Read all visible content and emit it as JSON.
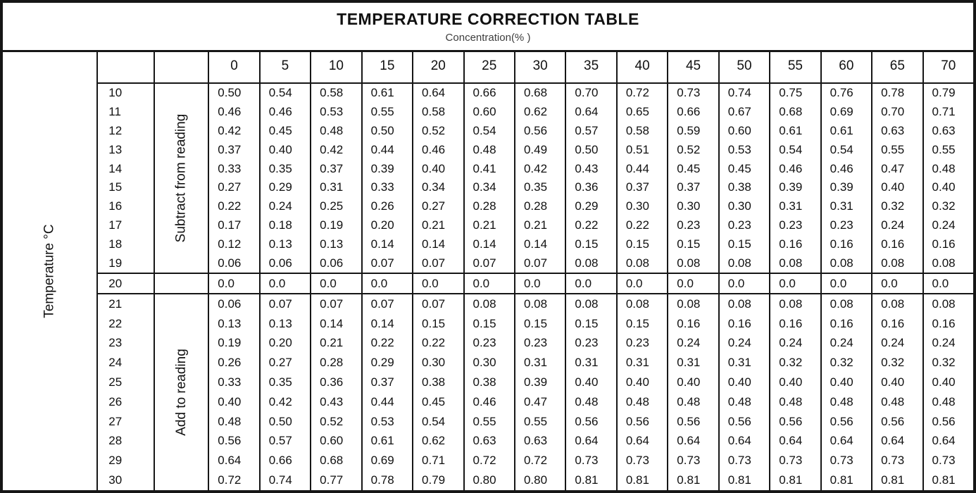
{
  "page": {
    "title": "TEMPERATURE CORRECTION TABLE",
    "subtitle": "Concentration(% )"
  },
  "colors": {
    "border": "#161616",
    "text": "#111111",
    "subtitle_text": "#3d3d3d",
    "background": "#ffffff"
  },
  "chart_data": {
    "type": "table",
    "title": "TEMPERATURE CORRECTION TABLE",
    "column_axis_label": "Concentration(% )",
    "row_axis_label": "Temperature °C",
    "columns": [
      "0",
      "5",
      "10",
      "15",
      "20",
      "25",
      "30",
      "35",
      "40",
      "45",
      "50",
      "55",
      "60",
      "65",
      "70"
    ],
    "sections": [
      {
        "label": "Subtract from reading",
        "temps": [
          "10",
          "11",
          "12",
          "13",
          "14",
          "15",
          "16",
          "17",
          "18",
          "19"
        ],
        "rows": [
          [
            "0.50",
            "0.54",
            "0.58",
            "0.61",
            "0.64",
            "0.66",
            "0.68",
            "0.70",
            "0.72",
            "0.73",
            "0.74",
            "0.75",
            "0.76",
            "0.78",
            "0.79"
          ],
          [
            "0.46",
            "0.46",
            "0.53",
            "0.55",
            "0.58",
            "0.60",
            "0.62",
            "0.64",
            "0.65",
            "0.66",
            "0.67",
            "0.68",
            "0.69",
            "0.70",
            "0.71"
          ],
          [
            "0.42",
            "0.45",
            "0.48",
            "0.50",
            "0.52",
            "0.54",
            "0.56",
            "0.57",
            "0.58",
            "0.59",
            "0.60",
            "0.61",
            "0.61",
            "0.63",
            "0.63"
          ],
          [
            "0.37",
            "0.40",
            "0.42",
            "0.44",
            "0.46",
            "0.48",
            "0.49",
            "0.50",
            "0.51",
            "0.52",
            "0.53",
            "0.54",
            "0.54",
            "0.55",
            "0.55"
          ],
          [
            "0.33",
            "0.35",
            "0.37",
            "0.39",
            "0.40",
            "0.41",
            "0.42",
            "0.43",
            "0.44",
            "0.45",
            "0.45",
            "0.46",
            "0.46",
            "0.47",
            "0.48"
          ],
          [
            "0.27",
            "0.29",
            "0.31",
            "0.33",
            "0.34",
            "0.34",
            "0.35",
            "0.36",
            "0.37",
            "0.37",
            "0.38",
            "0.39",
            "0.39",
            "0.40",
            "0.40"
          ],
          [
            "0.22",
            "0.24",
            "0.25",
            "0.26",
            "0.27",
            "0.28",
            "0.28",
            "0.29",
            "0.30",
            "0.30",
            "0.30",
            "0.31",
            "0.31",
            "0.32",
            "0.32"
          ],
          [
            "0.17",
            "0.18",
            "0.19",
            "0.20",
            "0.21",
            "0.21",
            "0.21",
            "0.22",
            "0.22",
            "0.23",
            "0.23",
            "0.23",
            "0.23",
            "0.24",
            "0.24"
          ],
          [
            "0.12",
            "0.13",
            "0.13",
            "0.14",
            "0.14",
            "0.14",
            "0.14",
            "0.15",
            "0.15",
            "0.15",
            "0.15",
            "0.16",
            "0.16",
            "0.16",
            "0.16"
          ],
          [
            "0.06",
            "0.06",
            "0.06",
            "0.07",
            "0.07",
            "0.07",
            "0.07",
            "0.08",
            "0.08",
            "0.08",
            "0.08",
            "0.08",
            "0.08",
            "0.08",
            "0.08"
          ]
        ]
      },
      {
        "label": "",
        "temps": [
          "20"
        ],
        "rows": [
          [
            "0.0",
            "0.0",
            "0.0",
            "0.0",
            "0.0",
            "0.0",
            "0.0",
            "0.0",
            "0.0",
            "0.0",
            "0.0",
            "0.0",
            "0.0",
            "0.0",
            "0.0"
          ]
        ]
      },
      {
        "label": "Add to reading",
        "temps": [
          "21",
          "22",
          "23",
          "24",
          "25",
          "26",
          "27",
          "28",
          "29",
          "30"
        ],
        "rows": [
          [
            "0.06",
            "0.07",
            "0.07",
            "0.07",
            "0.07",
            "0.08",
            "0.08",
            "0.08",
            "0.08",
            "0.08",
            "0.08",
            "0.08",
            "0.08",
            "0.08",
            "0.08"
          ],
          [
            "0.13",
            "0.13",
            "0.14",
            "0.14",
            "0.15",
            "0.15",
            "0.15",
            "0.15",
            "0.15",
            "0.16",
            "0.16",
            "0.16",
            "0.16",
            "0.16",
            "0.16"
          ],
          [
            "0.19",
            "0.20",
            "0.21",
            "0.22",
            "0.22",
            "0.23",
            "0.23",
            "0.23",
            "0.23",
            "0.24",
            "0.24",
            "0.24",
            "0.24",
            "0.24",
            "0.24"
          ],
          [
            "0.26",
            "0.27",
            "0.28",
            "0.29",
            "0.30",
            "0.30",
            "0.31",
            "0.31",
            "0.31",
            "0.31",
            "0.31",
            "0.32",
            "0.32",
            "0.32",
            "0.32"
          ],
          [
            "0.33",
            "0.35",
            "0.36",
            "0.37",
            "0.38",
            "0.38",
            "0.39",
            "0.40",
            "0.40",
            "0.40",
            "0.40",
            "0.40",
            "0.40",
            "0.40",
            "0.40"
          ],
          [
            "0.40",
            "0.42",
            "0.43",
            "0.44",
            "0.45",
            "0.46",
            "0.47",
            "0.48",
            "0.48",
            "0.48",
            "0.48",
            "0.48",
            "0.48",
            "0.48",
            "0.48"
          ],
          [
            "0.48",
            "0.50",
            "0.52",
            "0.53",
            "0.54",
            "0.55",
            "0.55",
            "0.56",
            "0.56",
            "0.56",
            "0.56",
            "0.56",
            "0.56",
            "0.56",
            "0.56"
          ],
          [
            "0.56",
            "0.57",
            "0.60",
            "0.61",
            "0.62",
            "0.63",
            "0.63",
            "0.64",
            "0.64",
            "0.64",
            "0.64",
            "0.64",
            "0.64",
            "0.64",
            "0.64"
          ],
          [
            "0.64",
            "0.66",
            "0.68",
            "0.69",
            "0.71",
            "0.72",
            "0.72",
            "0.73",
            "0.73",
            "0.73",
            "0.73",
            "0.73",
            "0.73",
            "0.73",
            "0.73"
          ],
          [
            "0.72",
            "0.74",
            "0.77",
            "0.78",
            "0.79",
            "0.80",
            "0.80",
            "0.81",
            "0.81",
            "0.81",
            "0.81",
            "0.81",
            "0.81",
            "0.81",
            "0.81"
          ]
        ]
      }
    ]
  }
}
